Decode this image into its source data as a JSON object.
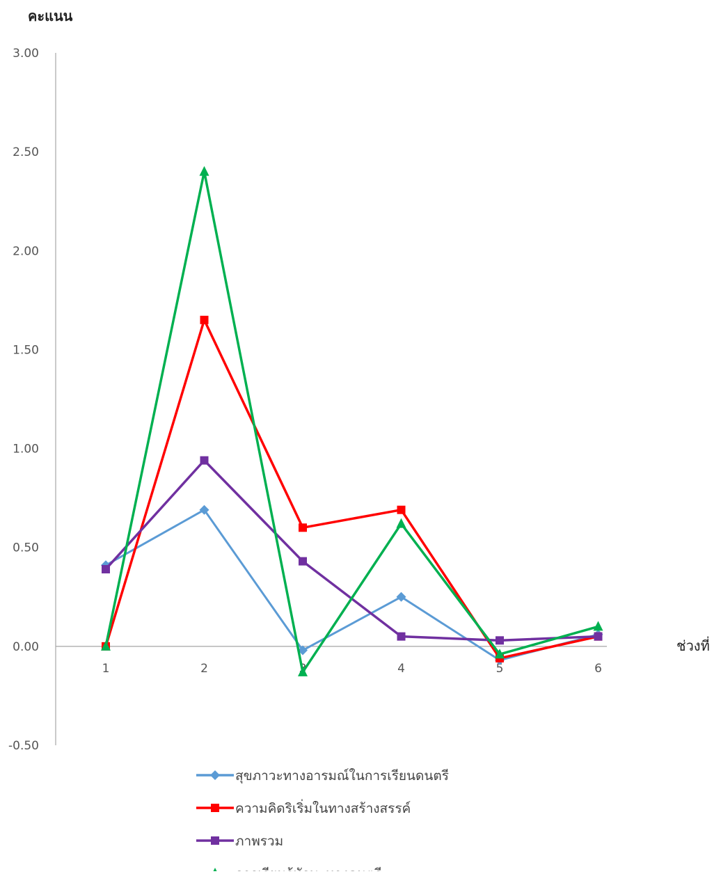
{
  "chart_data": {
    "type": "line",
    "ylabel": "คะแนน",
    "xlabel": "ช่วงที่",
    "categories": [
      "1",
      "2",
      "3",
      "4",
      "5",
      "6"
    ],
    "ylim": [
      -0.5,
      3.0
    ],
    "ytick_labels": [
      "3.00",
      "2.50",
      "2.00",
      "1.50",
      "1.00",
      "0.50",
      "0.00",
      "-0.50"
    ],
    "ytick_values": [
      3.0,
      2.5,
      2.0,
      1.5,
      1.0,
      0.5,
      0.0,
      -0.5
    ],
    "grid": false,
    "legend_position": "bottom",
    "series": [
      {
        "name": "สุขภาวะทางอารมณ์ในการเรียนดนตรี",
        "values": [
          0.41,
          0.69,
          -0.02,
          0.25,
          -0.07,
          0.06
        ],
        "color": "#5B9BD5",
        "marker": "diamond"
      },
      {
        "name": "ความคิดริเริ่มในทางสร้างสรรค์",
        "values": [
          0.0,
          1.65,
          0.6,
          0.69,
          -0.06,
          0.05
        ],
        "color": "#FF0000",
        "marker": "square"
      },
      {
        "name": "ภาพรวม",
        "values": [
          0.39,
          0.94,
          0.43,
          0.05,
          0.03,
          0.05
        ],
        "color": "#7030A0",
        "marker": "square"
      },
      {
        "name": "การเรียนรู้ทักษะทางดนตรี",
        "values": [
          0.0,
          2.4,
          -0.13,
          0.62,
          -0.04,
          0.1
        ],
        "color": "#00B050",
        "marker": "triangle"
      }
    ]
  }
}
